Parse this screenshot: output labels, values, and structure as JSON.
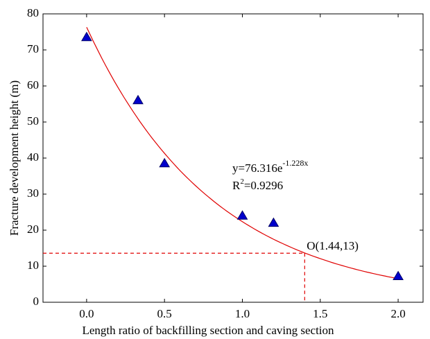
{
  "chart_data": {
    "type": "scatter",
    "x_label": "Length ratio of backfilling section and caving section",
    "y_label": "Fracture development height (m)",
    "x": [
      0,
      0.33,
      0.5,
      1.0,
      1.2,
      2.0
    ],
    "values": [
      73.5,
      56,
      38.5,
      24,
      22,
      7.2
    ],
    "color": "#0000cc",
    "fit": {
      "a": 76.316,
      "b": -1.228,
      "color": "#e00000"
    },
    "equation": {
      "main": "y=76.316e",
      "exponent": "-1.228x",
      "r_base": "R",
      "r_exponent": "2",
      "r_value": "=0.9296"
    },
    "reference_point": {
      "x": 1.4,
      "y": 13.6,
      "label": "O(1.44,13)",
      "color": "#e00000"
    },
    "xlim": [
      -0.28,
      2.16
    ],
    "ylim": [
      0,
      80
    ],
    "xticks": [
      {
        "value": 0,
        "label": "0.0"
      },
      {
        "value": 0.5,
        "label": "0.5"
      },
      {
        "value": 1.0,
        "label": "1.0"
      },
      {
        "value": 1.5,
        "label": "1.5"
      },
      {
        "value": 2.0,
        "label": "2.0"
      }
    ],
    "yticks": [
      0,
      10,
      20,
      30,
      40,
      50,
      60,
      70,
      80
    ]
  }
}
